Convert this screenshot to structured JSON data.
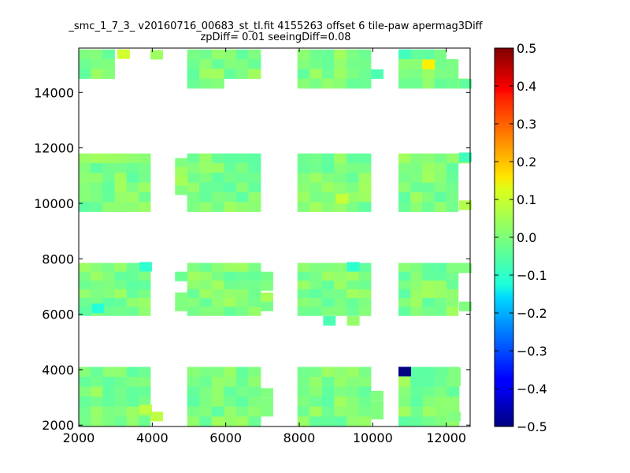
{
  "chart_data": {
    "type": "heatmap",
    "title": "_smc_1_7_3_ v20160716_00683_st_tl.fit 4155263 offset 6 tile-paw apermag3Diff",
    "subtitle": "zpDiff= 0.01 seeingDiff=0.08",
    "xlabel": "",
    "ylabel": "",
    "xlim": [
      2000,
      12650
    ],
    "ylim": [
      1950,
      15600
    ],
    "x_ticks": [
      "2000",
      "4000",
      "6000",
      "8000",
      "10000",
      "12000"
    ],
    "y_ticks": [
      "2000",
      "4000",
      "6000",
      "8000",
      "10000",
      "12000",
      "14000"
    ],
    "grid": false,
    "colormap": "jet",
    "colorbar": {
      "range": [
        -0.5,
        0.5
      ],
      "ticks": [
        "0.5",
        "0.4",
        "0.3",
        "0.2",
        "0.1",
        "0.0",
        "−0.1",
        "−0.2",
        "−0.3",
        "−0.4",
        "−0.5"
      ]
    },
    "cell_size": [
      333,
      333
    ],
    "typical_value": 0.0,
    "blocks": [
      {
        "x0": 2000,
        "x1": 3950,
        "y0": 14150,
        "y1": 15550,
        "missing": [
          [
            0,
            6
          ],
          [
            0,
            5
          ],
          [
            1,
            5
          ],
          [
            2,
            5
          ],
          [
            3,
            5
          ],
          [
            3,
            4
          ],
          [
            3,
            0
          ],
          [
            3,
            1
          ],
          [
            3,
            2
          ],
          [
            3,
            3
          ],
          [
            2,
            4
          ],
          [
            1,
            4
          ],
          [
            0,
            4
          ],
          [
            0,
            3
          ],
          [
            1,
            3
          ],
          [
            2,
            3
          ]
        ]
      },
      {
        "x0": 4950,
        "x1": 6950,
        "y0": 14150,
        "y1": 15550,
        "missing": [
          [
            3,
            5
          ],
          [
            3,
            4
          ],
          [
            3,
            3
          ],
          [
            3,
            5
          ]
        ]
      },
      {
        "x0": 7950,
        "x1": 9950,
        "y0": 14150,
        "y1": 15550,
        "missing": []
      },
      {
        "x0": 10700,
        "x1": 12650,
        "y0": 14150,
        "y1": 15550,
        "missing": [
          [
            0,
            5
          ],
          [
            0,
            6
          ],
          [
            1,
            5
          ],
          [
            1,
            6
          ],
          [
            2,
            5
          ],
          [
            2,
            6
          ],
          [
            0,
            4
          ]
        ]
      },
      {
        "x0": 2000,
        "x1": 3950,
        "y0": 9700,
        "y1": 11800,
        "missing": []
      },
      {
        "x0": 4950,
        "x1": 6950,
        "y0": 9700,
        "y1": 11800,
        "missing": []
      },
      {
        "x0": 7950,
        "x1": 9950,
        "y0": 9700,
        "y1": 11800,
        "missing": []
      },
      {
        "x0": 10700,
        "x1": 12650,
        "y0": 9700,
        "y1": 11800,
        "missing": [
          [
            1,
            5
          ],
          [
            1,
            6
          ],
          [
            2,
            5
          ],
          [
            2,
            6
          ],
          [
            3,
            5
          ],
          [
            3,
            6
          ],
          [
            4,
            5
          ],
          [
            4,
            6
          ],
          [
            5,
            5
          ]
        ]
      },
      {
        "x0": 2000,
        "x1": 3950,
        "y0": 5950,
        "y1": 7850,
        "missing": []
      },
      {
        "x0": 4950,
        "x1": 6950,
        "y0": 5950,
        "y1": 7850,
        "missing": []
      },
      {
        "x0": 7950,
        "x1": 9950,
        "y0": 5950,
        "y1": 7850,
        "missing": []
      },
      {
        "x0": 10700,
        "x1": 12650,
        "y0": 5950,
        "y1": 7850,
        "missing": [
          [
            1,
            5
          ],
          [
            1,
            6
          ],
          [
            2,
            5
          ],
          [
            2,
            6
          ],
          [
            3,
            5
          ],
          [
            3,
            6
          ],
          [
            4,
            5
          ],
          [
            4,
            6
          ],
          [
            5,
            5
          ]
        ]
      },
      {
        "x0": 2000,
        "x1": 3950,
        "y0": 1950,
        "y1": 4100,
        "missing": []
      },
      {
        "x0": 4950,
        "x1": 6950,
        "y0": 1950,
        "y1": 4100,
        "missing": []
      },
      {
        "x0": 7950,
        "x1": 9950,
        "y0": 1950,
        "y1": 4100,
        "missing": []
      },
      {
        "x0": 10700,
        "x1": 12350,
        "y0": 1950,
        "y1": 4100,
        "missing": []
      }
    ],
    "extra_cells": [
      {
        "x": 3950,
        "y": 15200,
        "value": 0.03
      },
      {
        "x": 3950,
        "y": 2150,
        "value": 0.06
      },
      {
        "x": 4620,
        "y": 11300,
        "value": 0.0
      },
      {
        "x": 4620,
        "y": 10970,
        "value": 0.03
      },
      {
        "x": 4620,
        "y": 10640,
        "value": 0.04
      },
      {
        "x": 4620,
        "y": 10310,
        "value": 0.0
      },
      {
        "x": 4620,
        "y": 7200,
        "value": -0.02
      },
      {
        "x": 4620,
        "y": 6450,
        "value": 0.0
      },
      {
        "x": 4620,
        "y": 6120,
        "value": 0.0
      },
      {
        "x": 6950,
        "y": 7200,
        "value": -0.01
      },
      {
        "x": 6950,
        "y": 6860,
        "value": 0.0
      },
      {
        "x": 6950,
        "y": 6450,
        "value": 0.04
      },
      {
        "x": 6950,
        "y": 6120,
        "value": -0.01
      },
      {
        "x": 6950,
        "y": 3000,
        "value": 0.0
      },
      {
        "x": 6950,
        "y": 2650,
        "value": 0.0
      },
      {
        "x": 6950,
        "y": 2320,
        "value": 0.0
      },
      {
        "x": 8650,
        "y": 5600,
        "value": -0.05
      },
      {
        "x": 9300,
        "y": 5600,
        "value": 0.02
      },
      {
        "x": 9950,
        "y": 2900,
        "value": 0.0
      },
      {
        "x": 9950,
        "y": 2550,
        "value": 0.0
      },
      {
        "x": 9950,
        "y": 2220,
        "value": 0.0
      },
      {
        "x": 12350,
        "y": 6120,
        "value": 0.0
      },
      {
        "x": 12350,
        "y": 14150,
        "value": -0.03
      },
      {
        "x": 12350,
        "y": 11500,
        "value": -0.06
      },
      {
        "x": 12350,
        "y": 9770,
        "value": 0.05
      },
      {
        "x": 12050,
        "y": 7500,
        "value": 0.0
      },
      {
        "x": 12350,
        "y": 7500,
        "value": 0.0
      },
      {
        "x": 12050,
        "y": 3750,
        "value": 0.0
      },
      {
        "x": 12050,
        "y": 3420,
        "value": 0.0
      },
      {
        "x": 12050,
        "y": 2150,
        "value": 0.0
      }
    ],
    "highlight_cells": [
      {
        "x": 10700,
        "y": 3770,
        "value": -0.5
      },
      {
        "x": 11350,
        "y": 14850,
        "value": 0.14
      },
      {
        "x": 3050,
        "y": 15220,
        "value": 0.08
      },
      {
        "x": 9000,
        "y": 10000,
        "value": 0.07
      },
      {
        "x": 9950,
        "y": 14500,
        "value": -0.05
      },
      {
        "x": 10700,
        "y": 15220,
        "value": -0.06
      },
      {
        "x": 3650,
        "y": 7550,
        "value": -0.08
      },
      {
        "x": 9300,
        "y": 7550,
        "value": -0.08
      },
      {
        "x": 2350,
        "y": 6050,
        "value": -0.09
      },
      {
        "x": 3650,
        "y": 2400,
        "value": 0.06
      }
    ]
  }
}
